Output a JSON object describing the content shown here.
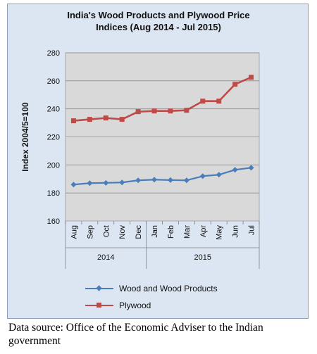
{
  "chart_data": {
    "type": "line",
    "title_lines": [
      "India's Wood Products and Plywood Price",
      "Indices (Aug 2014 - Jul 2015)"
    ],
    "ylabel": "Index 2004/5=100",
    "xlabel": "",
    "ylim": [
      160,
      280
    ],
    "yticks": [
      160,
      180,
      200,
      220,
      240,
      260,
      280
    ],
    "grid": "horizontal",
    "categories": [
      "Aug",
      "Sep",
      "Oct",
      "Nov",
      "Dec",
      "Jan",
      "Feb",
      "Mar",
      "Apr",
      "May",
      "Jun",
      "Jul"
    ],
    "year_groups": [
      {
        "label": "2014",
        "count": 5
      },
      {
        "label": "2015",
        "count": 7
      }
    ],
    "series": [
      {
        "name": "Wood and Wood Products",
        "color": "#4a7ebb",
        "marker": "diamond",
        "values": [
          186,
          187,
          187.2,
          187.5,
          189,
          189.5,
          189.2,
          189,
          192,
          193,
          196.5,
          198
        ]
      },
      {
        "name": "Plywood",
        "color": "#be4b48",
        "marker": "square",
        "values": [
          231.5,
          232.5,
          233.5,
          232.5,
          238,
          238.5,
          238.5,
          239,
          245.5,
          245.5,
          257.5,
          262.5
        ]
      }
    ],
    "legend_position": "bottom",
    "plot_background": "#d9d9d9",
    "frame_background": "#dce6f2"
  },
  "source_note": "Data source: Office of the Economic Adviser to the Indian government"
}
